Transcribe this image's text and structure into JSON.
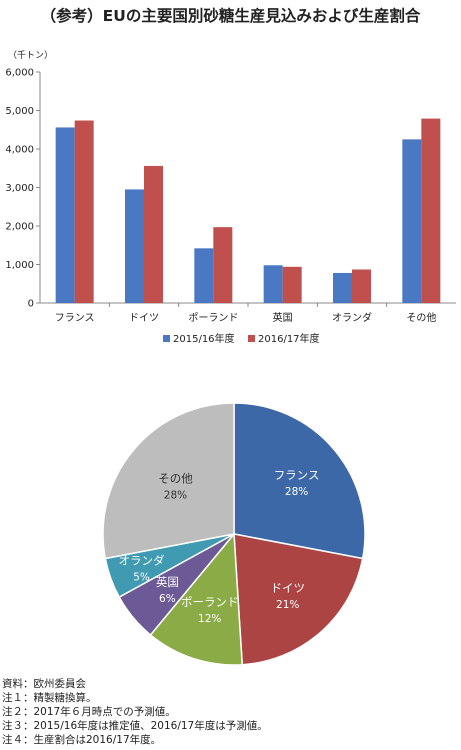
{
  "title": "（参考）EUの主要国別砂糖生産見込みおよび生産割合",
  "unit": "（千トン）",
  "chart_data": [
    {
      "type": "bar",
      "categories": [
        "フランス",
        "ドイツ",
        "ポーランド",
        "英国",
        "オランダ",
        "その他"
      ],
      "series": [
        {
          "name": "2015/16年度",
          "color": "#4a78c2",
          "values": [
            4560,
            2950,
            1420,
            980,
            780,
            4250
          ]
        },
        {
          "name": "2016/17年度",
          "color": "#c0504d",
          "values": [
            4740,
            3560,
            1970,
            940,
            870,
            4790
          ]
        }
      ],
      "yticks": [
        "0",
        "1,000",
        "2,000",
        "3,000",
        "4,000",
        "5,000",
        "6,000"
      ],
      "ylim": [
        0,
        6000
      ],
      "legend": "bottom"
    },
    {
      "type": "pie",
      "slices": [
        {
          "label": "フランス",
          "pct_label": "28%",
          "value": 28,
          "color": "#3d68a8"
        },
        {
          "label": "ドイツ",
          "pct_label": "21%",
          "value": 21,
          "color": "#ad4444"
        },
        {
          "label": "ポーランド",
          "pct_label": "12%",
          "value": 12,
          "color": "#8aab45"
        },
        {
          "label": "英国",
          "pct_label": "6%",
          "value": 6,
          "color": "#6c5a96"
        },
        {
          "label": "オランダ",
          "pct_label": "5%",
          "value": 5,
          "color": "#3f9ab2"
        },
        {
          "label": "その他",
          "pct_label": "28%",
          "value": 28,
          "color": "#bdbdbd"
        }
      ]
    }
  ],
  "notes": [
    "資料：欧州委員会",
    "注１：精製糖換算。",
    "注２：2017年６月時点での予測値。",
    "注３：2015/16年度は推定値、2016/17年度は予測値。",
    "注４：生産割合は2016/17年度。"
  ]
}
